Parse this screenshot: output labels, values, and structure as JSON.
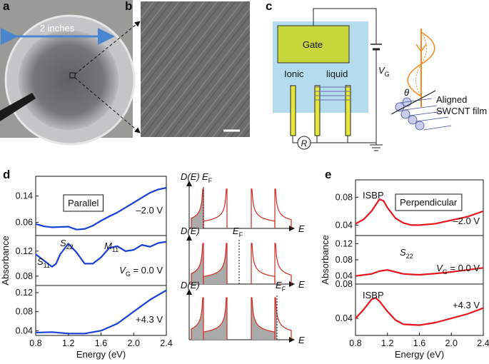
{
  "panel_labels": [
    "a",
    "b",
    "c",
    "d",
    "e"
  ],
  "photo": {
    "dimension": "2 inches"
  },
  "circuit": {
    "gate": "Gate",
    "ionic": "Ionic",
    "liquid": "liquid",
    "voltage": {
      "text": "V",
      "sub": "G"
    },
    "resistor": "R",
    "film": [
      "Aligned",
      "SWCNT film"
    ],
    "angle": "θ"
  },
  "dos": {
    "ylabel": "D(E)",
    "fermi": {
      "text": "E",
      "sub": "F"
    },
    "xlabel": "E"
  },
  "chart_data": [
    {
      "type": "line",
      "color": "#1a3fd6",
      "xlim": [
        0.8,
        2.4
      ],
      "ylim": [
        0.02,
        0.2
      ],
      "yticks": [
        0.06,
        0.14
      ],
      "x": [
        0.8,
        0.9,
        1.0,
        1.1,
        1.2,
        1.3,
        1.4,
        1.5,
        1.6,
        1.7,
        1.8,
        1.9,
        2.0,
        2.1,
        2.2,
        2.3,
        2.4
      ],
      "values": [
        0.055,
        0.048,
        0.045,
        0.046,
        0.047,
        0.038,
        0.04,
        0.05,
        0.065,
        0.078,
        0.09,
        0.105,
        0.12,
        0.135,
        0.15,
        0.16,
        0.165
      ],
      "annotations": [
        {
          "text": "Parallel"
        },
        {
          "text": "–2.0 V"
        }
      ]
    },
    {
      "type": "line",
      "color": "#1a3fd6",
      "xlim": [
        0.8,
        2.4
      ],
      "ylim": [
        0.065,
        0.145
      ],
      "yticks": [
        0.08,
        0.12
      ],
      "ylabel": "Absorbance",
      "x": [
        0.8,
        0.9,
        1.0,
        1.05,
        1.1,
        1.2,
        1.3,
        1.4,
        1.5,
        1.6,
        1.7,
        1.8,
        1.9,
        2.0,
        2.1,
        2.2,
        2.3,
        2.4
      ],
      "values": [
        0.115,
        0.105,
        0.095,
        0.1,
        0.115,
        0.132,
        0.118,
        0.1,
        0.1,
        0.11,
        0.125,
        0.128,
        0.12,
        0.122,
        0.13,
        0.127,
        0.133,
        0.135
      ],
      "annotations": [
        {
          "text": "S",
          "sub": "11"
        },
        {
          "text": "S",
          "sub": "22"
        },
        {
          "text": "M",
          "sub": "11"
        },
        {
          "text": "V",
          "sub": "G",
          "after": " = 0.0 V"
        }
      ]
    },
    {
      "type": "line",
      "color": "#1a3fd6",
      "xlim": [
        0.8,
        2.4
      ],
      "ylim": [
        0.03,
        0.135
      ],
      "yticks": [
        0.04,
        0.08,
        0.12
      ],
      "xlabel": "Energy (eV)",
      "xticks": [
        0.8,
        1.2,
        1.6,
        {
          "value": 2,
          "label": "2.0"
        },
        2.4
      ],
      "x": [
        0.8,
        1.0,
        1.2,
        1.4,
        1.6,
        1.8,
        2.0,
        2.2,
        2.4
      ],
      "values": [
        0.036,
        0.037,
        0.034,
        0.034,
        0.04,
        0.055,
        0.08,
        0.105,
        0.125
      ],
      "annotations": [
        {
          "text": "+4.3 V"
        }
      ]
    },
    {
      "type": "line",
      "color": "#e8141b",
      "xlim": [
        0.8,
        2.4
      ],
      "ylim": [
        0.025,
        0.105
      ],
      "yticks": [
        0.04,
        0.08
      ],
      "x": [
        0.8,
        0.9,
        1.0,
        1.1,
        1.15,
        1.2,
        1.3,
        1.4,
        1.5,
        1.6,
        1.8,
        2.0,
        2.2,
        2.4
      ],
      "values": [
        0.042,
        0.048,
        0.06,
        0.077,
        0.075,
        0.065,
        0.05,
        0.043,
        0.04,
        0.04,
        0.042,
        0.047,
        0.052,
        0.06
      ],
      "annotations": [
        {
          "text": "Perpendicular"
        },
        {
          "text": "ISBP"
        },
        {
          "text": "–2.0 V"
        }
      ]
    },
    {
      "type": "line",
      "color": "#e8141b",
      "xlim": [
        0.8,
        2.4
      ],
      "ylim": [
        0.02,
        0.14
      ],
      "yticks": [
        0.04,
        0.08,
        0.12
      ],
      "ylabel": "Absorbance",
      "x": [
        0.8,
        1.0,
        1.1,
        1.2,
        1.3,
        1.4,
        1.6,
        1.8,
        2.0,
        2.2,
        2.4
      ],
      "values": [
        0.04,
        0.045,
        0.052,
        0.055,
        0.05,
        0.045,
        0.043,
        0.046,
        0.05,
        0.055,
        0.06
      ],
      "annotations": [
        {
          "text": "S",
          "sub": "22"
        },
        {
          "text": "V",
          "sub": "G",
          "after": " = 0.0 V"
        }
      ]
    },
    {
      "type": "line",
      "color": "#e8141b",
      "xlim": [
        0.8,
        2.4
      ],
      "ylim": [
        0.02,
        0.08
      ],
      "yticks": [
        0.04,
        0.08
      ],
      "xlabel": "Energy (eV)",
      "xticks": [
        0.8,
        1.2,
        1.6,
        {
          "value": 2,
          "label": "2.0"
        },
        2.4
      ],
      "x": [
        0.8,
        0.9,
        1.0,
        1.05,
        1.1,
        1.2,
        1.3,
        1.4,
        1.6,
        1.8,
        2.0,
        2.2,
        2.4
      ],
      "values": [
        0.04,
        0.05,
        0.062,
        0.064,
        0.06,
        0.048,
        0.038,
        0.033,
        0.032,
        0.035,
        0.04,
        0.045,
        0.052
      ],
      "annotations": [
        {
          "text": "ISBP"
        },
        {
          "text": "+4.3 V"
        }
      ]
    }
  ]
}
